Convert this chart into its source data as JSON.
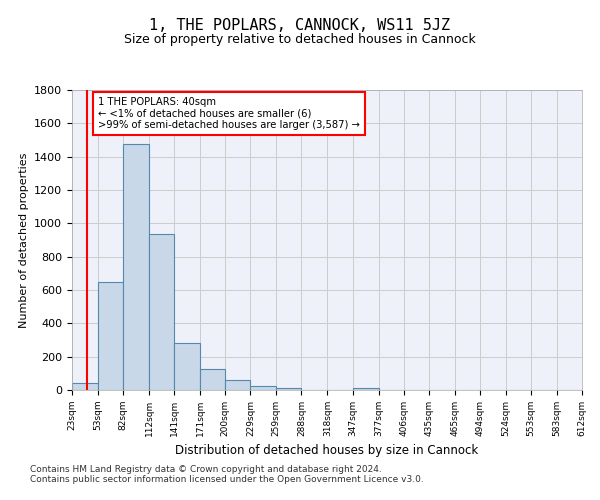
{
  "title": "1, THE POPLARS, CANNOCK, WS11 5JZ",
  "subtitle": "Size of property relative to detached houses in Cannock",
  "xlabel": "Distribution of detached houses by size in Cannock",
  "ylabel": "Number of detached properties",
  "footnote1": "Contains HM Land Registry data © Crown copyright and database right 2024.",
  "footnote2": "Contains public sector information licensed under the Open Government Licence v3.0.",
  "bar_edges": [
    23,
    53,
    82,
    112,
    141,
    171,
    200,
    229,
    259,
    288,
    318,
    347,
    377,
    406,
    435,
    465,
    494,
    524,
    553,
    583,
    612
  ],
  "bar_heights": [
    40,
    648,
    1474,
    938,
    283,
    125,
    62,
    22,
    14,
    0,
    0,
    14,
    0,
    0,
    0,
    0,
    0,
    0,
    0,
    0
  ],
  "bar_color": "#c8d8e8",
  "bar_edgecolor": "#5588aa",
  "grid_color": "#cccccc",
  "bg_color": "#eef1fa",
  "redline_x": 40,
  "ylim": [
    0,
    1800
  ],
  "annotation_line1": "1 THE POPLARS: 40sqm",
  "annotation_line2": "← <1% of detached houses are smaller (6)",
  "annotation_line3": ">99% of semi-detached houses are larger (3,587) →",
  "annotation_box_color": "white",
  "annotation_box_edgecolor": "red",
  "redline_color": "red",
  "tick_labels": [
    "23sqm",
    "53sqm",
    "82sqm",
    "112sqm",
    "141sqm",
    "171sqm",
    "200sqm",
    "229sqm",
    "259sqm",
    "288sqm",
    "318sqm",
    "347sqm",
    "377sqm",
    "406sqm",
    "435sqm",
    "465sqm",
    "494sqm",
    "524sqm",
    "553sqm",
    "583sqm",
    "612sqm"
  ]
}
